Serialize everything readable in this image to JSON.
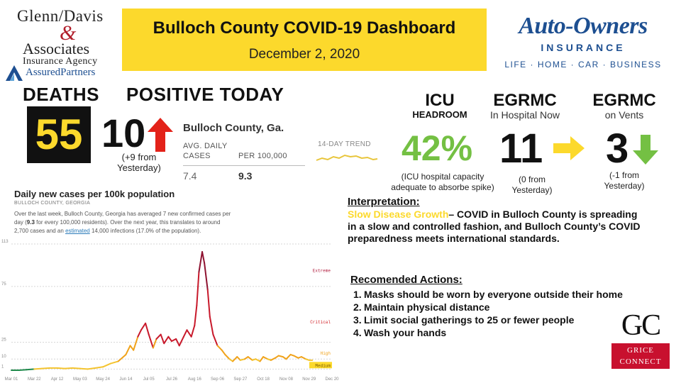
{
  "header": {
    "title": "Bulloch County COVID-19 Dashboard",
    "date": "December 2, 2020"
  },
  "logo_left": {
    "line1": "Glenn/Davis",
    "amp": "&",
    "line2": "Associates",
    "line3": "Insurance Agency",
    "line4": "AssuredPartners"
  },
  "logo_right": {
    "brand": "Auto-Owners",
    "sub": "INSURANCE",
    "tagline": "LIFE · HOME · CAR · BUSINESS"
  },
  "deaths": {
    "label": "DEATHS",
    "value": "55"
  },
  "positive": {
    "label": "POSITIVE TODAY",
    "value": "10",
    "change": "(+9  from Yesterday)"
  },
  "nyt": {
    "county": "Bulloch County, Ga.",
    "col1_header": "AVG. DAILY CASES",
    "col2_header": "PER 100,000",
    "col1_value": "7.4",
    "col2_value": "9.3",
    "trend_label": "14-DAY TREND"
  },
  "icu": {
    "title": "ICU",
    "subtitle": "HEADROOM",
    "value": "42%",
    "note": "(ICU hospital capacity adequate to absorbe spike)"
  },
  "hospital": {
    "title": "EGRMC",
    "subtitle": "In Hospital Now",
    "value": "11",
    "note": "(0 from Yesterday)"
  },
  "vents": {
    "title": "EGRMC",
    "subtitle": "on Vents",
    "value": "3",
    "note": "(-1 from Yesterday)"
  },
  "colors": {
    "yellow": "#fcd92c",
    "green": "#74c043",
    "red": "#e32219",
    "navy": "#1d4f91"
  },
  "chart_data": {
    "type": "line",
    "title": "Daily new cases per 100k population",
    "subtitle": "BULLOCH COUNTY, GEORGIA",
    "desc_1": "Over the last week, Bulloch County, Georgia has averaged 7 new confirmed cases per day (",
    "desc_bold": "9.3",
    "desc_2": " for every 100,000 residents). Over the next year, this translates to around 2,700 cases and an ",
    "desc_link": "estimated",
    "desc_3": " 14,000 infections (17.0% of the population).",
    "yticks": [
      1,
      10,
      25,
      75,
      113
    ],
    "xtick_labels": [
      "Mar 01",
      "Mar 22",
      "Apr 12",
      "May 03",
      "May 24",
      "Jun 14",
      "Jul 05",
      "Jul 26",
      "Aug 16",
      "Sep 06",
      "Sep 27",
      "Oct 18",
      "Nov 08",
      "Nov 29",
      "Dec 20"
    ],
    "ylim": [
      0,
      113
    ],
    "zones": [
      {
        "name": "Extreme",
        "min": 75
      },
      {
        "name": "Critical",
        "min": 25
      },
      {
        "name": "High",
        "min": 10
      },
      {
        "name": "Medium",
        "min": 1
      }
    ],
    "series": [
      {
        "days": [
          0,
          7,
          14,
          21,
          28,
          35,
          42,
          49,
          56,
          63,
          70,
          77,
          84,
          91,
          98,
          105,
          109,
          112,
          116,
          119,
          123,
          126,
          130,
          133,
          137,
          140,
          144,
          147,
          151,
          154,
          158,
          161,
          165,
          168,
          170,
          172,
          175,
          177,
          180,
          182,
          185,
          189,
          193,
          196,
          200,
          203,
          207,
          210,
          214,
          217,
          221,
          224,
          228,
          231,
          235,
          238,
          242,
          245,
          249,
          252,
          256,
          259,
          263,
          266,
          270,
          273,
          276
        ],
        "values": [
          0,
          0,
          0.5,
          1,
          1.5,
          2,
          2,
          1.5,
          2,
          1.5,
          1,
          2,
          3,
          6,
          8,
          14,
          22,
          18,
          30,
          36,
          42,
          32,
          20,
          28,
          32,
          24,
          30,
          26,
          28,
          22,
          30,
          36,
          30,
          40,
          58,
          88,
          106,
          96,
          72,
          48,
          32,
          22,
          18,
          14,
          10,
          8,
          12,
          9,
          10,
          12,
          9,
          10,
          8,
          12,
          10,
          9,
          11,
          13,
          12,
          10,
          14,
          13,
          11,
          12,
          10,
          9,
          9
        ]
      }
    ]
  },
  "interpretation": {
    "heading": "Interpretation:",
    "highlight": "Slow Disease Growth",
    "text": "– COVID in Bulloch County is spreading in a slow and controlled fashion, and Bulloch County’s COVID preparedness meets international standards."
  },
  "actions": {
    "heading": "Recomended Actions:",
    "items": [
      {
        "num": "1.",
        "text": "Masks should be worn by everyone outside their home"
      },
      {
        "num": "2.",
        "text": "Maintain physical distance"
      },
      {
        "num": "3.",
        "text": "Limit social gatherings to 25 or fewer people"
      },
      {
        "num": "4.",
        "text": "Wash your hands"
      }
    ]
  },
  "logo_gc": {
    "letters": "GC",
    "line1": "GRICE",
    "line2": "CONNECT"
  }
}
